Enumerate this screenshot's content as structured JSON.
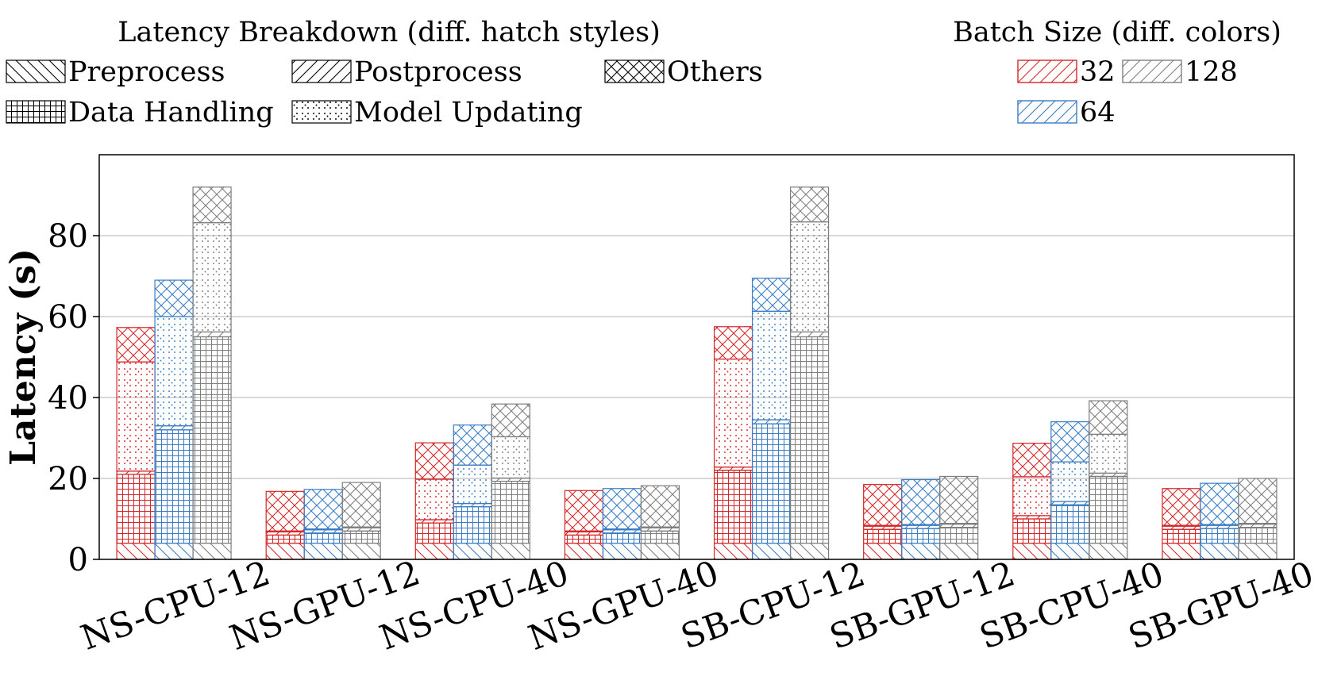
{
  "chart_data": {
    "type": "bar",
    "ylabel": "Latency (s)",
    "xlabel": "",
    "ylim": [
      0,
      100
    ],
    "yticks": [
      0,
      20,
      40,
      60,
      80
    ],
    "grid": true,
    "categories": [
      "NS-CPU-12",
      "NS-GPU-12",
      "NS-CPU-40",
      "NS-GPU-40",
      "SB-CPU-12",
      "SB-GPU-12",
      "SB-CPU-40",
      "SB-GPU-40"
    ],
    "stack_order": [
      "Preprocess",
      "Data Handling",
      "Postprocess",
      "Model Updating",
      "Others"
    ],
    "legend_breakdown": {
      "title": "Latency Breakdown (diff. hatch styles)",
      "items": [
        {
          "label": "Preprocess",
          "hatch": "backslash"
        },
        {
          "label": "Postprocess",
          "hatch": "slash"
        },
        {
          "label": "Others",
          "hatch": "cross"
        },
        {
          "label": "Data Handling",
          "hatch": "grid"
        },
        {
          "label": "Model Updating",
          "hatch": "dots"
        }
      ]
    },
    "legend_batch": {
      "title": "Batch Size (diff. colors)",
      "items": [
        {
          "label": "32",
          "color": "#d62728"
        },
        {
          "label": "128",
          "color": "#7f7f7f"
        },
        {
          "label": "64",
          "color": "#3a7dc4"
        }
      ]
    },
    "series": [
      {
        "name": "32",
        "color": "#d62728",
        "stacks": [
          {
            "Preprocess": 4,
            "Data Handling": 17,
            "Postprocess": 0.8,
            "Model Updating": 27,
            "Others": 8.5
          },
          {
            "Preprocess": 4,
            "Data Handling": 2,
            "Postprocess": 0.8,
            "Model Updating": 0.2,
            "Others": 9.8
          },
          {
            "Preprocess": 4,
            "Data Handling": 5,
            "Postprocess": 0.8,
            "Model Updating": 10,
            "Others": 9
          },
          {
            "Preprocess": 4,
            "Data Handling": 2,
            "Postprocess": 0.8,
            "Model Updating": 0.2,
            "Others": 10
          },
          {
            "Preprocess": 4,
            "Data Handling": 18,
            "Postprocess": 0.8,
            "Model Updating": 26.7,
            "Others": 8
          },
          {
            "Preprocess": 4,
            "Data Handling": 3.4,
            "Postprocess": 0.8,
            "Model Updating": 0.2,
            "Others": 10.1
          },
          {
            "Preprocess": 4,
            "Data Handling": 6,
            "Postprocess": 0.8,
            "Model Updating": 9.6,
            "Others": 8.3
          },
          {
            "Preprocess": 4,
            "Data Handling": 3.4,
            "Postprocess": 0.8,
            "Model Updating": 0.2,
            "Others": 9.1
          }
        ]
      },
      {
        "name": "64",
        "color": "#3a7dc4",
        "stacks": [
          {
            "Preprocess": 4,
            "Data Handling": 28,
            "Postprocess": 1,
            "Model Updating": 27,
            "Others": 9
          },
          {
            "Preprocess": 4,
            "Data Handling": 2.5,
            "Postprocess": 0.8,
            "Model Updating": 0.2,
            "Others": 9.8
          },
          {
            "Preprocess": 4,
            "Data Handling": 9,
            "Postprocess": 0.8,
            "Model Updating": 9.5,
            "Others": 9.9
          },
          {
            "Preprocess": 4,
            "Data Handling": 2.5,
            "Postprocess": 0.8,
            "Model Updating": 0.2,
            "Others": 10
          },
          {
            "Preprocess": 4,
            "Data Handling": 29.5,
            "Postprocess": 1,
            "Model Updating": 26.8,
            "Others": 8.2
          },
          {
            "Preprocess": 4,
            "Data Handling": 3.6,
            "Postprocess": 0.8,
            "Model Updating": 0.2,
            "Others": 11.1
          },
          {
            "Preprocess": 4,
            "Data Handling": 9.5,
            "Postprocess": 0.8,
            "Model Updating": 9.8,
            "Others": 9.9
          },
          {
            "Preprocess": 4,
            "Data Handling": 3.6,
            "Postprocess": 0.8,
            "Model Updating": 0.2,
            "Others": 10.2
          }
        ]
      },
      {
        "name": "128",
        "color": "#7f7f7f",
        "stacks": [
          {
            "Preprocess": 4,
            "Data Handling": 51,
            "Postprocess": 1.2,
            "Model Updating": 27,
            "Others": 8.8
          },
          {
            "Preprocess": 4,
            "Data Handling": 3,
            "Postprocess": 0.8,
            "Model Updating": 0.2,
            "Others": 11
          },
          {
            "Preprocess": 4,
            "Data Handling": 15.3,
            "Postprocess": 0.8,
            "Model Updating": 10.2,
            "Others": 8.1
          },
          {
            "Preprocess": 4,
            "Data Handling": 3,
            "Postprocess": 0.8,
            "Model Updating": 0.2,
            "Others": 10.2
          },
          {
            "Preprocess": 4,
            "Data Handling": 51,
            "Postprocess": 1.2,
            "Model Updating": 27.2,
            "Others": 8.6
          },
          {
            "Preprocess": 4,
            "Data Handling": 3.9,
            "Postprocess": 0.8,
            "Model Updating": 0.2,
            "Others": 11.6
          },
          {
            "Preprocess": 4,
            "Data Handling": 16.5,
            "Postprocess": 0.8,
            "Model Updating": 9.6,
            "Others": 8.3
          },
          {
            "Preprocess": 4,
            "Data Handling": 3.9,
            "Postprocess": 0.8,
            "Model Updating": 0.2,
            "Others": 11.1
          }
        ]
      }
    ]
  }
}
